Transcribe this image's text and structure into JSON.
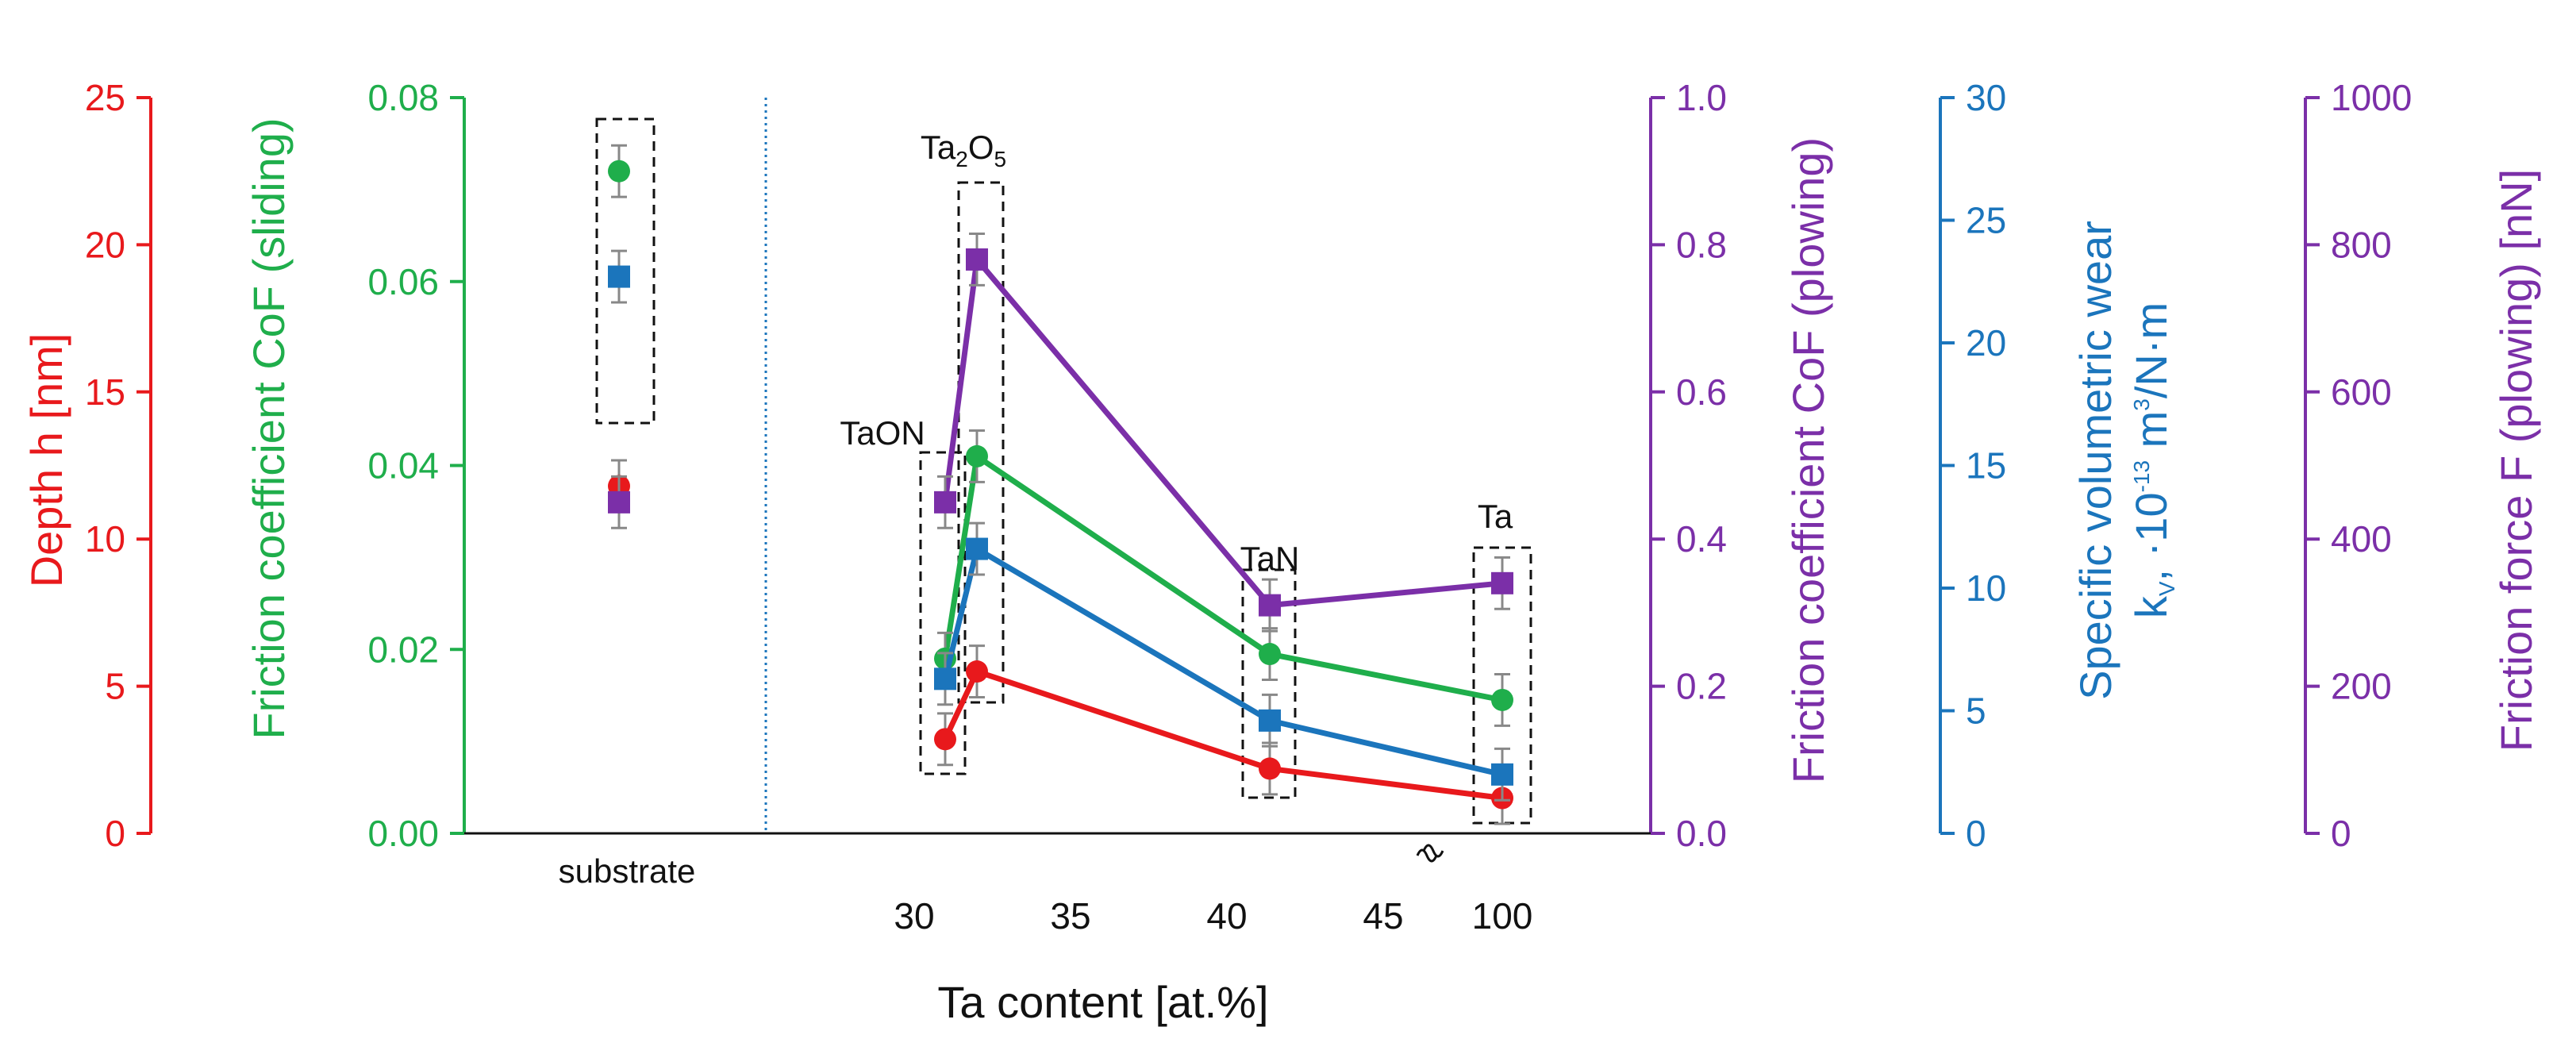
{
  "chart_data": {
    "type": "line",
    "xlabel": "Ta content [at.%]",
    "x_ticks": [
      "30",
      "35",
      "40",
      "45",
      "100"
    ],
    "substrate_label": "substrate",
    "axes": {
      "depth": {
        "label": "Depth h [nm]",
        "color": "#e8191c",
        "range": [
          0,
          25
        ],
        "ticks": [
          "0",
          "5",
          "10",
          "15",
          "20",
          "25"
        ]
      },
      "cof_sliding": {
        "label": "Friction coefficient CoF (sliding)",
        "color": "#1fae4b",
        "range": [
          0,
          0.08
        ],
        "ticks": [
          "0.00",
          "0.02",
          "0.04",
          "0.06",
          "0.08"
        ]
      },
      "cof_plowing": {
        "label": "Friction coefficient CoF (plowing)",
        "color": "#7b2fa8",
        "range": [
          0,
          1.0
        ],
        "ticks": [
          "0.0",
          "0.2",
          "0.4",
          "0.6",
          "0.8",
          "1.0"
        ]
      },
      "wear": {
        "label_line1": "Specific volumetric wear",
        "label_line2_prefix": "k",
        "label_line2_sub": "V",
        "label_line2_mid": ", ·10",
        "label_line2_sup": "-13",
        "label_line2_unit": " m",
        "label_line2_sup2": "3",
        "label_line2_end": "/N·m",
        "color": "#1b75bc",
        "range": [
          0,
          30
        ],
        "ticks": [
          "0",
          "5",
          "10",
          "15",
          "20",
          "25",
          "30"
        ]
      },
      "force": {
        "label": "Friction force F (plowing) [nN]",
        "color": "#7b2fa8",
        "range": [
          0,
          1000
        ],
        "ticks": [
          "0",
          "200",
          "400",
          "600",
          "800",
          "1000"
        ]
      }
    },
    "phase_labels": [
      {
        "name": "TaON",
        "text": "TaON"
      },
      {
        "name": "Ta2O5",
        "base1": "Ta",
        "sub1": "2",
        "base2": "O",
        "sub2": "5"
      },
      {
        "name": "TaN",
        "text": "TaN"
      },
      {
        "name": "Ta",
        "text": "Ta"
      }
    ],
    "substrate": {
      "depth": 11.8,
      "cof_sliding": 0.072,
      "cof_plowing": 0.45,
      "wear": 22.7
    },
    "series": [
      {
        "name": "Depth h",
        "axis": "depth",
        "color": "#e8191c",
        "marker": "circle",
        "points": [
          {
            "x": "31",
            "y": 3.2
          },
          {
            "x": "32",
            "y": 5.5
          },
          {
            "x": "42",
            "y": 2.2
          },
          {
            "x": "100",
            "y": 1.2
          }
        ]
      },
      {
        "name": "CoF sliding",
        "axis": "cof_sliding",
        "color": "#1fae4b",
        "marker": "circle",
        "points": [
          {
            "x": "31",
            "y": 0.019
          },
          {
            "x": "32",
            "y": 0.041
          },
          {
            "x": "42",
            "y": 0.0195
          },
          {
            "x": "100",
            "y": 0.0145
          }
        ]
      },
      {
        "name": "Wear kV",
        "axis": "wear",
        "color": "#1b75bc",
        "marker": "square",
        "points": [
          {
            "x": "31",
            "y": 6.3
          },
          {
            "x": "32",
            "y": 11.6
          },
          {
            "x": "42",
            "y": 4.6
          },
          {
            "x": "100",
            "y": 2.4
          }
        ]
      },
      {
        "name": "CoF plowing",
        "axis": "cof_plowing",
        "color": "#7b2fa8",
        "marker": "square",
        "points": [
          {
            "x": "31",
            "y": 0.45
          },
          {
            "x": "32",
            "y": 0.78
          },
          {
            "x": "42",
            "y": 0.31
          },
          {
            "x": "100",
            "y": 0.34
          }
        ]
      }
    ]
  }
}
